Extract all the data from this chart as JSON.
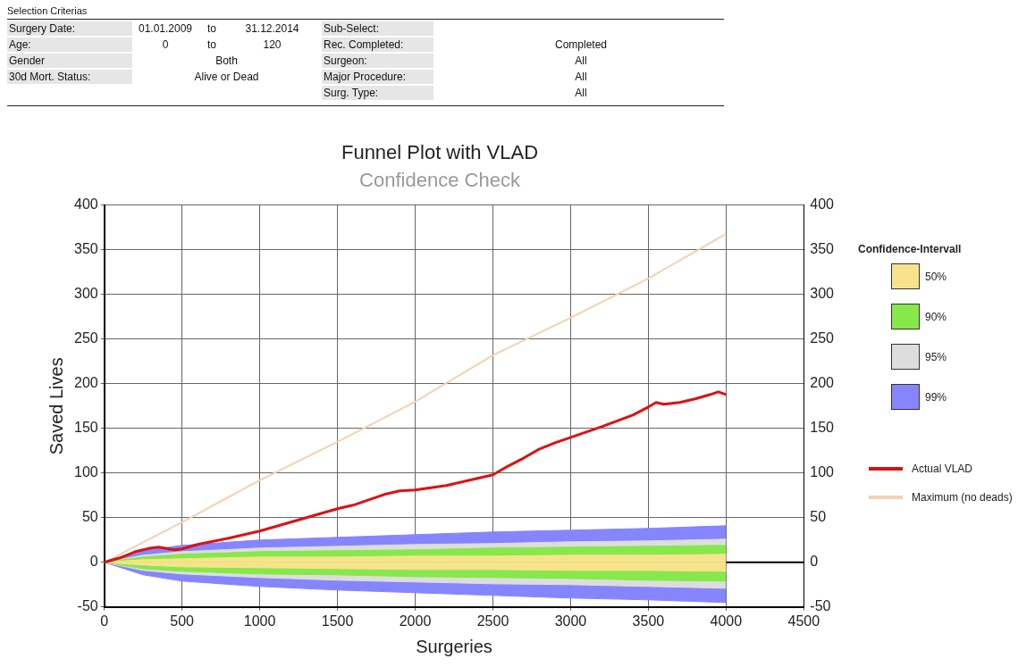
{
  "chart_data": {
    "type": "line",
    "title": "Funnel Plot with VLAD",
    "subtitle": "Confidence Check",
    "xlabel": "Surgeries",
    "ylabel": "Saved Lives",
    "legend_title": "Confidence-Intervall",
    "annotations": [
      "Selection Criterias",
      "Surgery Date:",
      "01.01.2009",
      "to",
      "31.12.2014",
      "Age:",
      "0",
      "to",
      "120",
      "Gender",
      "Both",
      "30d Mort. Status:",
      "Alive or Dead",
      "Sub-Select:",
      "Rec. Completed:",
      "Completed",
      "Surgeon:",
      "All",
      "Major Procedure:",
      "All",
      "Surg. Type:",
      "All"
    ],
    "xlim": [
      0,
      4500
    ],
    "xticks": [
      0,
      500,
      1000,
      1500,
      2000,
      2500,
      3000,
      3500,
      4000,
      4500
    ],
    "ylim": [
      -50,
      400
    ],
    "yticks": [
      -50,
      0,
      50,
      100,
      150,
      200,
      250,
      300,
      350,
      400
    ],
    "y2lim": [
      -50,
      400
    ],
    "y2ticks": [
      -50,
      0,
      50,
      100,
      150,
      200,
      250,
      300,
      350,
      400
    ],
    "grid": true,
    "legend": "right",
    "marker": "none",
    "line_style": "solid",
    "ref_lines": [
      {
        "axis": "y",
        "value": 0,
        "color": "#000000"
      }
    ],
    "series": [
      {
        "name": "Actual VLAD",
        "type": "line",
        "color": "#dd1111",
        "x": [
          0,
          100,
          200,
          300,
          350,
          450,
          500,
          600,
          800,
          1000,
          1200,
          1400,
          1500,
          1600,
          1800,
          1900,
          2000,
          2200,
          2400,
          2500,
          2600,
          2700,
          2800,
          2900,
          3000,
          3200,
          3400,
          3500,
          3550,
          3600,
          3700,
          3800,
          3900,
          3950,
          4000
        ],
        "values": [
          0,
          5,
          12,
          16,
          17,
          14,
          15,
          20,
          27,
          35,
          45,
          55,
          60,
          64,
          76,
          80,
          81,
          86,
          94,
          98,
          108,
          117,
          127,
          134,
          140,
          152,
          165,
          174,
          179,
          177,
          179,
          183,
          188,
          191,
          188
        ]
      },
      {
        "name": "Maximum (no deads)",
        "type": "line",
        "color": "#f2d2b4",
        "x": [
          0,
          500,
          1000,
          1500,
          2000,
          2500,
          3000,
          3500,
          4000
        ],
        "values": [
          0,
          45,
          92,
          135,
          180,
          232,
          274,
          318,
          368
        ]
      },
      {
        "name": "50%",
        "type": "area",
        "color": "#f8e38c",
        "x": [
          0,
          250,
          500,
          1000,
          1500,
          2000,
          2500,
          3000,
          3500,
          4000
        ],
        "values": [
          0,
          3,
          4,
          6,
          6,
          7,
          7,
          8,
          8,
          9
        ]
      },
      {
        "name": "90%",
        "type": "area",
        "color": "#86e84a",
        "x": [
          0,
          250,
          500,
          1000,
          1500,
          2000,
          2500,
          3000,
          3500,
          4000
        ],
        "values": [
          0,
          6,
          9,
          12,
          13,
          14,
          16,
          17,
          18,
          19
        ]
      },
      {
        "name": "95%",
        "type": "area",
        "color": "#dddddd",
        "x": [
          0,
          250,
          500,
          1000,
          1500,
          2000,
          2500,
          3000,
          3500,
          4000
        ],
        "values": [
          0,
          8,
          12,
          16,
          18,
          20,
          21,
          23,
          24,
          26
        ]
      },
      {
        "name": "99%",
        "type": "area",
        "color": "#8585ff",
        "x": [
          0,
          250,
          500,
          1000,
          1500,
          2000,
          2500,
          3000,
          3500,
          4000
        ],
        "values": [
          0,
          13,
          19,
          25,
          28,
          31,
          34,
          36,
          38,
          41
        ]
      },
      {
        "type": "area",
        "color": "#f8e38c",
        "x": [
          0,
          250,
          500,
          1000,
          1500,
          2000,
          2500,
          3000,
          3500,
          4000
        ],
        "values": [
          0,
          -3,
          -5,
          -6,
          -7,
          -8,
          -8,
          -9,
          -9,
          -10
        ]
      },
      {
        "type": "area",
        "color": "#86e84a",
        "x": [
          0,
          250,
          500,
          1000,
          1500,
          2000,
          2500,
          3000,
          3500,
          4000
        ],
        "values": [
          0,
          -7,
          -10,
          -13,
          -14,
          -16,
          -17,
          -18,
          -20,
          -21
        ]
      },
      {
        "type": "area",
        "color": "#dddddd",
        "x": [
          0,
          250,
          500,
          1000,
          1500,
          2000,
          2500,
          3000,
          3500,
          4000
        ],
        "values": [
          0,
          -9,
          -13,
          -17,
          -20,
          -22,
          -24,
          -25,
          -27,
          -29
        ]
      },
      {
        "type": "area",
        "color": "#8585ff",
        "x": [
          0,
          250,
          500,
          1000,
          1500,
          2000,
          2500,
          3000,
          3500,
          4000
        ],
        "values": [
          0,
          -14,
          -21,
          -27,
          -31,
          -34,
          -37,
          -40,
          -42,
          -45
        ]
      }
    ]
  }
}
